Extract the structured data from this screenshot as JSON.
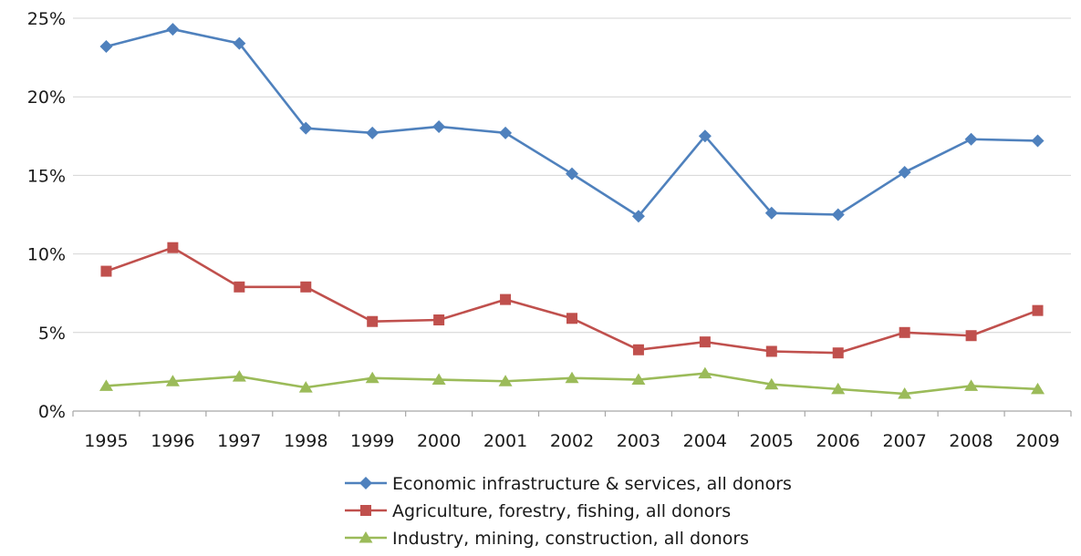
{
  "chart_data": {
    "type": "line",
    "x": [
      "1995",
      "1996",
      "1997",
      "1998",
      "1999",
      "2000",
      "2001",
      "2002",
      "2003",
      "2004",
      "2005",
      "2006",
      "2007",
      "2008",
      "2009"
    ],
    "ylim": [
      0,
      25
    ],
    "yticks": [
      0,
      5,
      10,
      15,
      20,
      25
    ],
    "ytick_labels": [
      "0%",
      "5%",
      "10%",
      "15%",
      "20%",
      "25%"
    ],
    "grid": "horizontal",
    "legend_position": "bottom",
    "series": [
      {
        "name": "Economic infrastructure & services, all donors",
        "color": "#4f81bd",
        "marker": "diamond",
        "values": [
          23.2,
          24.3,
          23.4,
          18.0,
          17.7,
          18.1,
          17.7,
          15.1,
          12.4,
          17.5,
          12.6,
          12.5,
          15.2,
          17.3,
          17.2
        ]
      },
      {
        "name": "Agriculture, forestry, fishing, all donors",
        "color": "#c0504d",
        "marker": "square",
        "values": [
          8.9,
          10.4,
          7.9,
          7.9,
          5.7,
          5.8,
          7.1,
          5.9,
          3.9,
          4.4,
          3.8,
          3.7,
          5.0,
          4.8,
          6.4
        ]
      },
      {
        "name": "Industry, mining, construction, all donors",
        "color": "#9bbb59",
        "marker": "triangle",
        "values": [
          1.6,
          1.9,
          2.2,
          1.5,
          2.1,
          2.0,
          1.9,
          2.1,
          2.0,
          2.4,
          1.7,
          1.4,
          1.1,
          1.6,
          1.4
        ]
      }
    ]
  }
}
